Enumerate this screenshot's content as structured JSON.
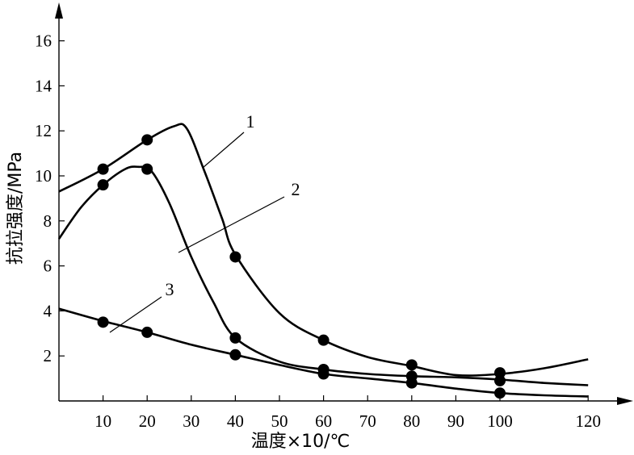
{
  "chart_data": {
    "type": "line",
    "xlabel": "温度×10/℃",
    "ylabel": "抗拉强度/MPa",
    "xlim": [
      0,
      125
    ],
    "ylim": [
      0,
      17
    ],
    "x_ticks": [
      10,
      20,
      30,
      40,
      50,
      60,
      70,
      80,
      90,
      100,
      120
    ],
    "y_ticks": [
      2,
      4,
      6,
      8,
      10,
      12,
      14,
      16
    ],
    "grid": false,
    "series": [
      {
        "name": "1",
        "curve": [
          [
            0,
            9.3
          ],
          [
            10,
            10.3
          ],
          [
            20,
            11.6
          ],
          [
            26,
            12.2
          ],
          [
            29,
            12.1
          ],
          [
            33,
            10.2
          ],
          [
            37,
            8.1
          ],
          [
            40,
            6.5
          ],
          [
            50,
            3.9
          ],
          [
            60,
            2.7
          ],
          [
            70,
            1.95
          ],
          [
            80,
            1.55
          ],
          [
            90,
            1.15
          ],
          [
            100,
            1.2
          ],
          [
            110,
            1.45
          ],
          [
            120,
            1.85
          ]
        ],
        "markers": [
          [
            10,
            10.3
          ],
          [
            20,
            11.6
          ],
          [
            40,
            6.4
          ],
          [
            60,
            2.7
          ],
          [
            80,
            1.6
          ],
          [
            100,
            1.25
          ]
        ]
      },
      {
        "name": "2",
        "curve": [
          [
            0,
            7.2
          ],
          [
            5,
            8.6
          ],
          [
            10,
            9.6
          ],
          [
            15,
            10.3
          ],
          [
            18,
            10.4
          ],
          [
            21,
            10.2
          ],
          [
            25,
            8.8
          ],
          [
            30,
            6.4
          ],
          [
            35,
            4.4
          ],
          [
            40,
            2.8
          ],
          [
            50,
            1.75
          ],
          [
            60,
            1.4
          ],
          [
            70,
            1.2
          ],
          [
            80,
            1.1
          ],
          [
            90,
            1.05
          ],
          [
            100,
            0.95
          ],
          [
            110,
            0.8
          ],
          [
            120,
            0.7
          ]
        ],
        "markers": [
          [
            10,
            9.6
          ],
          [
            20,
            10.3
          ],
          [
            40,
            2.8
          ],
          [
            60,
            1.4
          ],
          [
            80,
            1.1
          ],
          [
            100,
            0.9
          ]
        ]
      },
      {
        "name": "3",
        "curve": [
          [
            0,
            4.1
          ],
          [
            10,
            3.55
          ],
          [
            20,
            3.05
          ],
          [
            30,
            2.5
          ],
          [
            40,
            2.05
          ],
          [
            50,
            1.6
          ],
          [
            60,
            1.2
          ],
          [
            70,
            1.0
          ],
          [
            80,
            0.8
          ],
          [
            90,
            0.55
          ],
          [
            100,
            0.35
          ],
          [
            110,
            0.25
          ],
          [
            120,
            0.2
          ]
        ],
        "markers": [
          [
            10,
            3.5
          ],
          [
            20,
            3.05
          ],
          [
            40,
            2.05
          ],
          [
            60,
            1.2
          ],
          [
            80,
            0.8
          ],
          [
            100,
            0.35
          ]
        ]
      }
    ]
  }
}
